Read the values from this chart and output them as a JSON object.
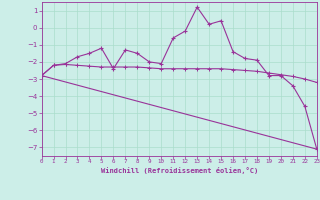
{
  "xlabel": "Windchill (Refroidissement éolien,°C)",
  "bg_color": "#cceee8",
  "line_color": "#993399",
  "grid_color": "#aaddcc",
  "xlim": [
    0,
    23
  ],
  "ylim": [
    -7.5,
    1.5
  ],
  "xticks": [
    0,
    1,
    2,
    3,
    4,
    5,
    6,
    7,
    8,
    9,
    10,
    11,
    12,
    13,
    14,
    15,
    16,
    17,
    18,
    19,
    20,
    21,
    22,
    23
  ],
  "yticks": [
    1,
    0,
    -1,
    -2,
    -3,
    -4,
    -5,
    -6,
    -7
  ],
  "line1_x": [
    0,
    1,
    2,
    3,
    4,
    5,
    6,
    7,
    8,
    9,
    10,
    11,
    12,
    13,
    14,
    15,
    16,
    17,
    18,
    19,
    20,
    21,
    22,
    23
  ],
  "line1_y": [
    -2.8,
    -2.2,
    -2.1,
    -1.7,
    -1.5,
    -1.2,
    -2.4,
    -1.3,
    -1.5,
    -2.0,
    -2.1,
    -0.6,
    -0.2,
    1.2,
    0.2,
    0.4,
    -1.4,
    -1.8,
    -1.9,
    -2.8,
    -2.8,
    -3.4,
    -4.6,
    -7.1
  ],
  "line2_x": [
    0,
    1,
    2,
    3,
    4,
    5,
    6,
    7,
    8,
    9,
    10,
    11,
    12,
    13,
    14,
    15,
    16,
    17,
    18,
    19,
    20,
    21,
    22,
    23
  ],
  "line2_y": [
    -2.8,
    -2.2,
    -2.15,
    -2.2,
    -2.25,
    -2.3,
    -2.3,
    -2.3,
    -2.3,
    -2.35,
    -2.4,
    -2.4,
    -2.4,
    -2.4,
    -2.4,
    -2.4,
    -2.45,
    -2.5,
    -2.55,
    -2.65,
    -2.75,
    -2.85,
    -3.0,
    -3.2
  ],
  "line3_x": [
    0,
    23
  ],
  "line3_y": [
    -2.8,
    -7.1
  ]
}
